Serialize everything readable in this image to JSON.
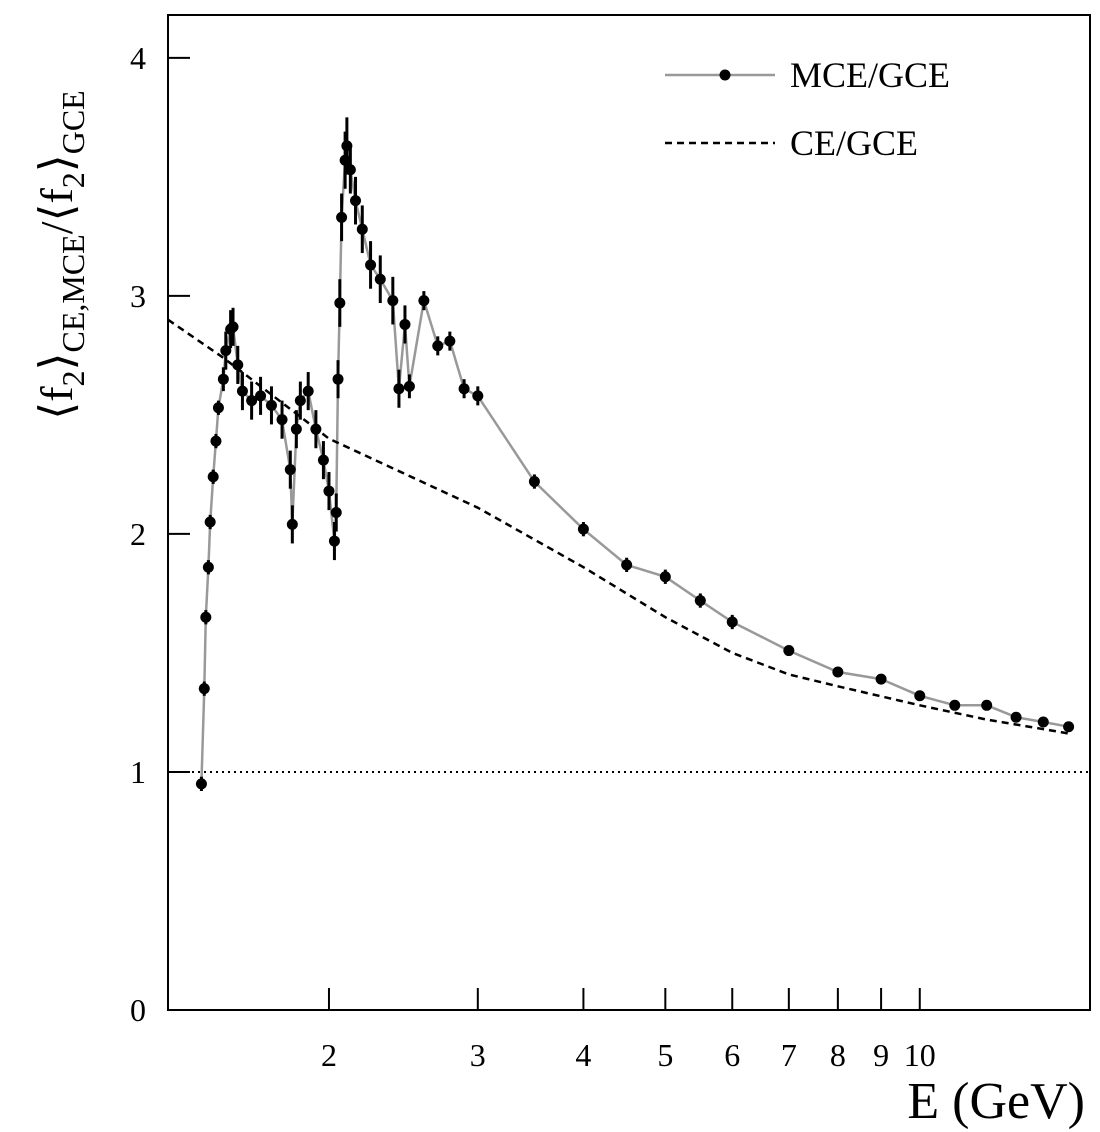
{
  "chart_data": {
    "type": "line",
    "xlabel": "E (GeV)",
    "ylabel_parts": [
      "⟨f",
      "2",
      "⟩",
      "CE,MCE",
      "/⟨f",
      "2",
      "⟩",
      "GCE"
    ],
    "xscale": "log",
    "xlim": [
      1.29,
      15.9
    ],
    "ylim": [
      0,
      4.18
    ],
    "xticks": [
      2,
      3,
      4,
      5,
      6,
      7,
      8,
      9,
      10
    ],
    "yticks": [
      0,
      1,
      2,
      3,
      4
    ],
    "reference_line": 1,
    "legend": "upper right",
    "series": [
      {
        "name": "MCE/GCE",
        "color": "#999999",
        "marker_color": "#000000",
        "x": [
          1.413,
          1.424,
          1.43,
          1.44,
          1.447,
          1.459,
          1.47,
          1.48,
          1.5,
          1.51,
          1.53,
          1.54,
          1.56,
          1.58,
          1.62,
          1.66,
          1.71,
          1.76,
          1.8,
          1.81,
          1.83,
          1.85,
          1.89,
          1.93,
          1.97,
          2.0,
          2.03,
          2.04,
          2.05,
          2.06,
          2.07,
          2.09,
          2.1,
          2.12,
          2.15,
          2.19,
          2.24,
          2.3,
          2.38,
          2.42,
          2.46,
          2.49,
          2.59,
          2.69,
          2.78,
          2.89,
          3.0,
          3.5,
          4.0,
          4.5,
          5.0,
          5.5,
          6.0,
          7.0,
          8.0,
          9.0,
          10.0,
          11.0,
          12.0,
          13.0,
          14.0,
          15.0
        ],
        "values": [
          0.95,
          1.35,
          1.65,
          1.86,
          2.05,
          2.24,
          2.39,
          2.53,
          2.65,
          2.77,
          2.86,
          2.87,
          2.71,
          2.6,
          2.56,
          2.58,
          2.54,
          2.48,
          2.27,
          2.04,
          2.44,
          2.56,
          2.6,
          2.44,
          2.31,
          2.18,
          1.97,
          2.09,
          2.65,
          2.97,
          3.33,
          3.57,
          3.63,
          3.53,
          3.4,
          3.28,
          3.13,
          3.07,
          2.98,
          2.61,
          2.88,
          2.62,
          2.98,
          2.79,
          2.81,
          2.61,
          2.58,
          2.22,
          2.02,
          1.87,
          1.82,
          1.72,
          1.63,
          1.51,
          1.42,
          1.39,
          1.32,
          1.28,
          1.28,
          1.23,
          1.21,
          1.19
        ],
        "errors": [
          0.03,
          0.03,
          0.03,
          0.03,
          0.03,
          0.03,
          0.03,
          0.03,
          0.05,
          0.08,
          0.08,
          0.08,
          0.08,
          0.08,
          0.08,
          0.08,
          0.08,
          0.08,
          0.08,
          0.08,
          0.08,
          0.08,
          0.08,
          0.08,
          0.08,
          0.08,
          0.08,
          0.08,
          0.08,
          0.1,
          0.1,
          0.12,
          0.12,
          0.1,
          0.1,
          0.1,
          0.1,
          0.1,
          0.1,
          0.08,
          0.08,
          0.05,
          0.04,
          0.04,
          0.04,
          0.04,
          0.04,
          0.03,
          0.03,
          0.03,
          0.03,
          0.03,
          0.03,
          0.02,
          0.02,
          0.02,
          0.02,
          0.02,
          0.02,
          0.02,
          0.02,
          0.02
        ]
      },
      {
        "name": "CE/GCE",
        "color": "#000000",
        "dashed": true,
        "x": [
          1.29,
          1.5,
          2,
          3,
          4,
          5,
          6,
          7,
          8,
          10,
          12,
          14,
          15.1
        ],
        "values": [
          2.9,
          2.74,
          2.4,
          2.11,
          1.86,
          1.65,
          1.5,
          1.41,
          1.36,
          1.28,
          1.22,
          1.18,
          1.16
        ]
      }
    ]
  }
}
